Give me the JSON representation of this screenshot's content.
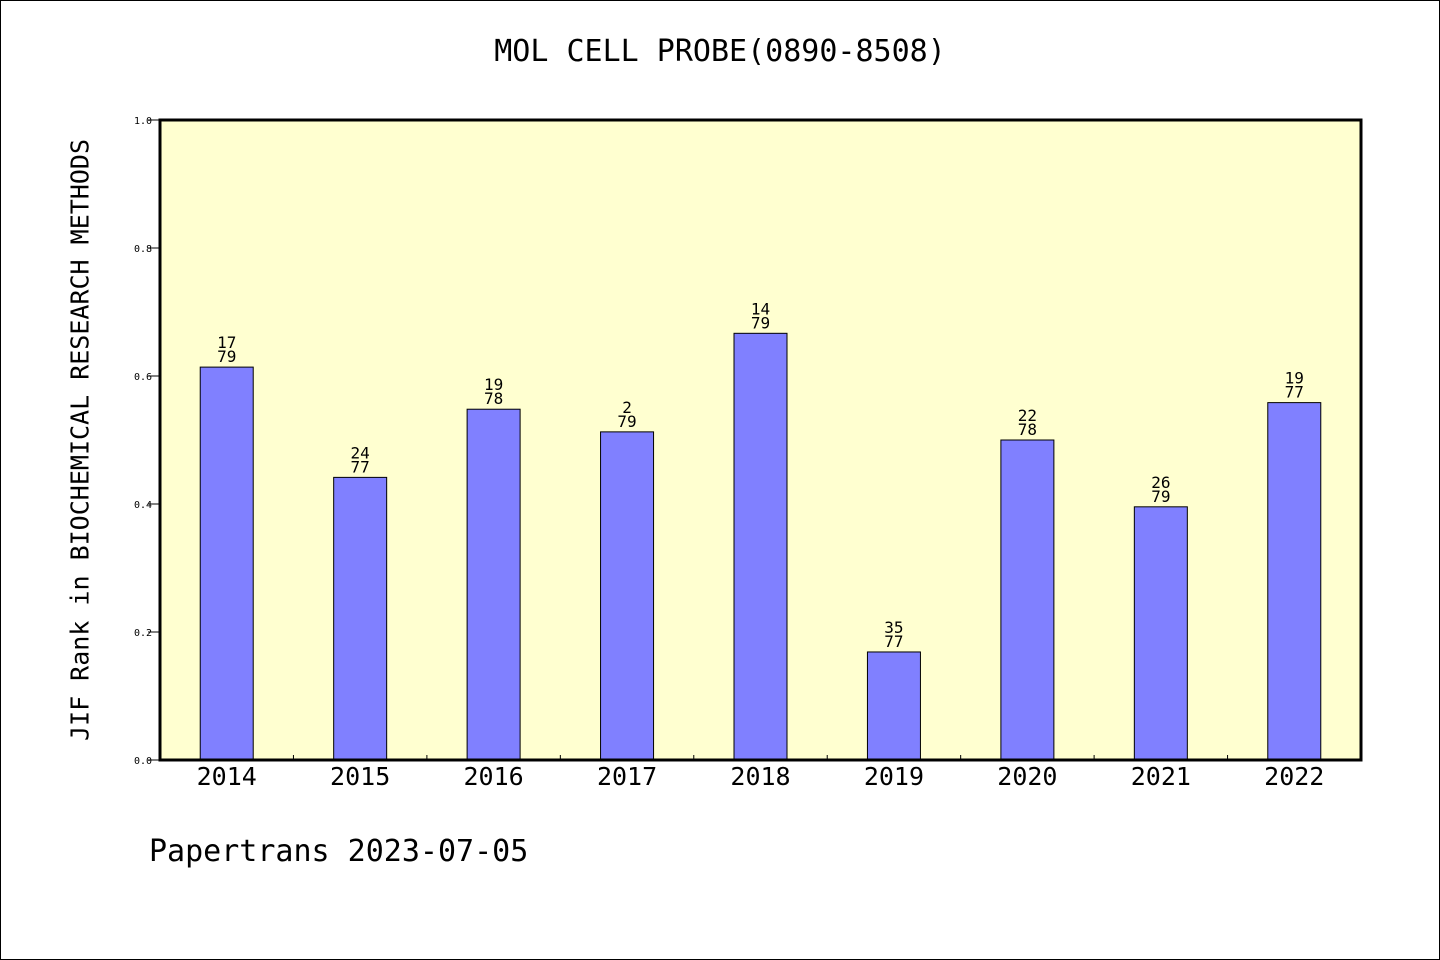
{
  "colors": {
    "plot_background": "#ffffd0",
    "bar_fill": "#8080ff",
    "bar_stroke": "#000000"
  },
  "chart_data": {
    "type": "bar",
    "title": "MOL CELL PROBE(0890-8508)",
    "xlabel": "",
    "ylabel": "JIF Rank in BIOCHEMICAL RESEARCH METHODS",
    "ylim": [
      0,
      1.0
    ],
    "yticks": [
      "0.0",
      "0.2",
      "0.4",
      "0.6",
      "0.8",
      "1.0"
    ],
    "grid": false,
    "categories": [
      "2014",
      "2015",
      "2016",
      "2017",
      "2018",
      "2019",
      "2020",
      "2021",
      "2022"
    ],
    "values": [
      0.6139,
      0.4416,
      0.5481,
      0.5127,
      0.6667,
      0.1688,
      0.5,
      0.3956,
      0.5584
    ],
    "labels": [
      {
        "rank": "17",
        "total": "79"
      },
      {
        "rank": "24",
        "total": "77"
      },
      {
        "rank": "19",
        "total": "78"
      },
      {
        "rank": "2",
        "total": "79"
      },
      {
        "rank": "14",
        "total": "79"
      },
      {
        "rank": "35",
        "total": "77"
      },
      {
        "rank": "22",
        "total": "78"
      },
      {
        "rank": "26",
        "total": "79"
      },
      {
        "rank": "19",
        "total": "77"
      }
    ]
  },
  "footer": "Papertrans 2023-07-05"
}
